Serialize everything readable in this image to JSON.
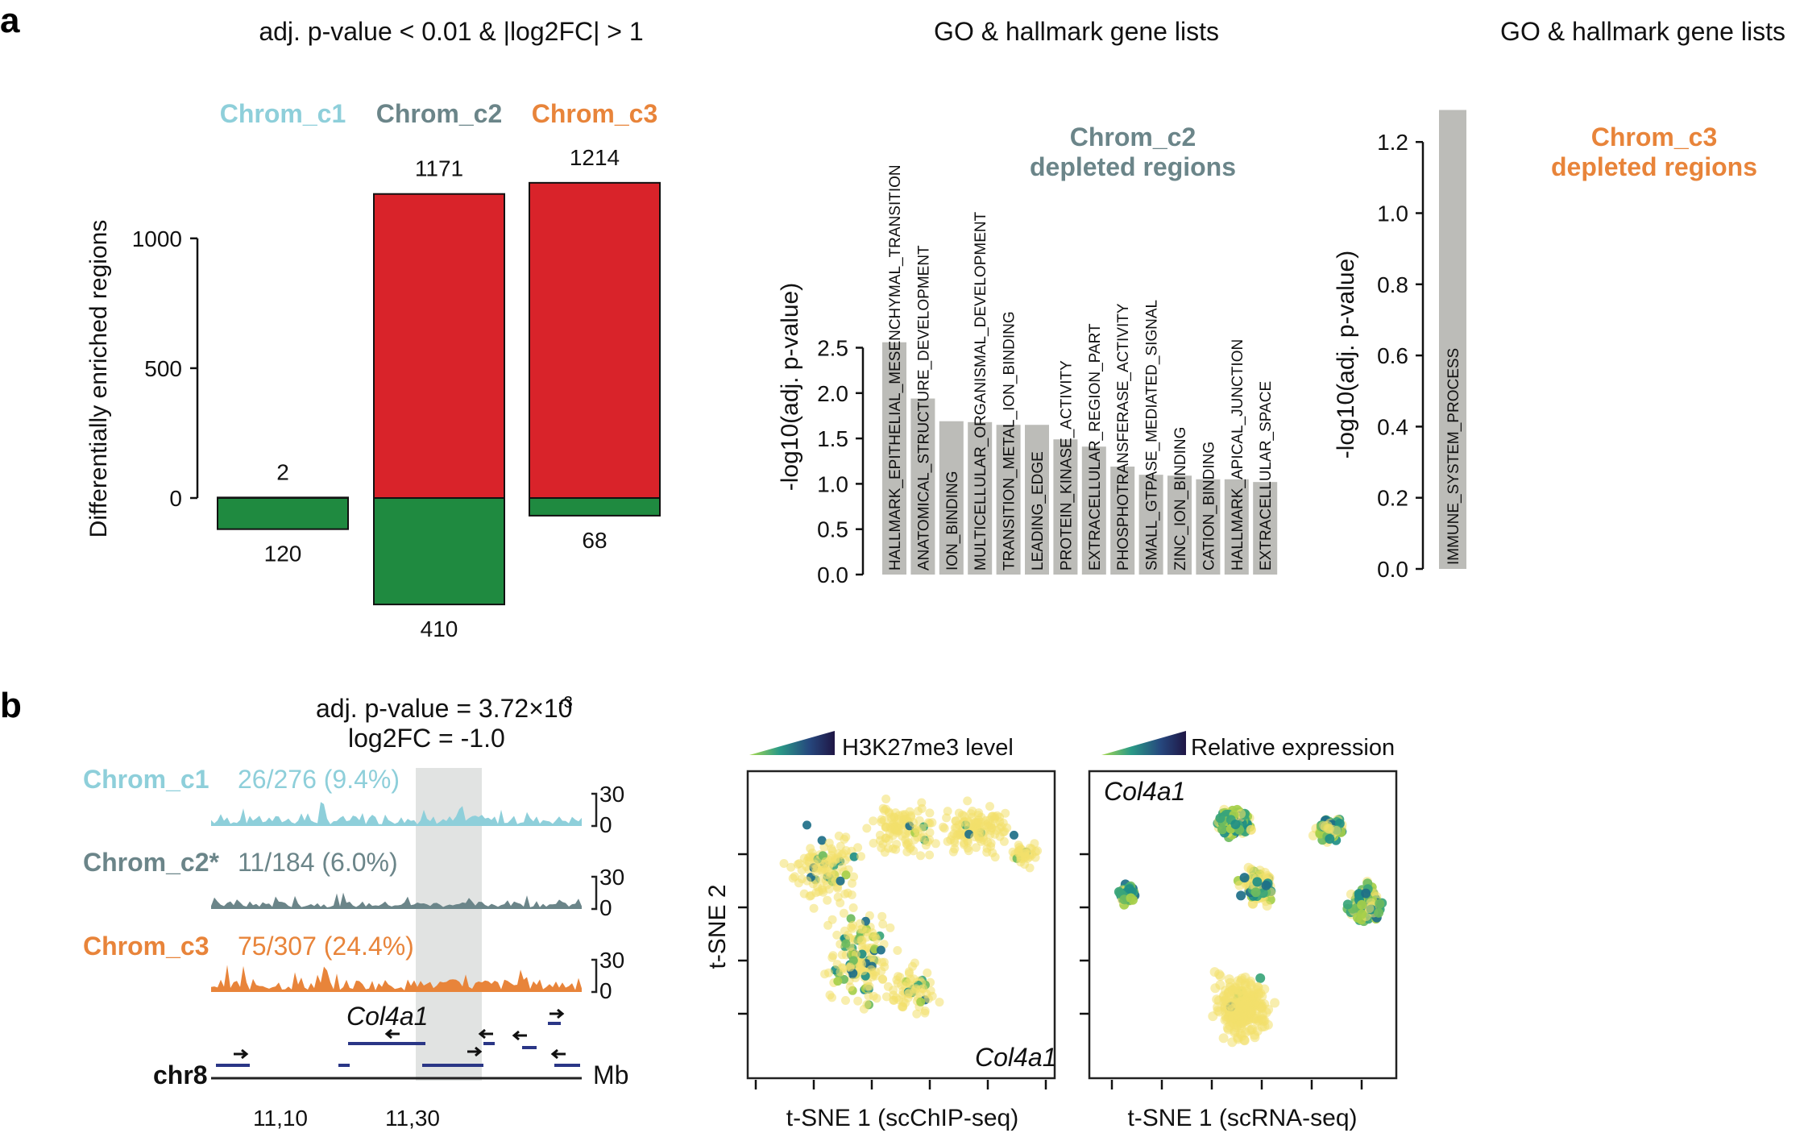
{
  "panel_a_label": "a",
  "panel_b_label": "b",
  "colors": {
    "c1": "#8ecfda",
    "c2": "#6b8589",
    "c3": "#e8843a",
    "up": "#d9232a",
    "down": "#1f8a40",
    "go_bar": "#bcbcb8"
  },
  "chart_data": [
    {
      "type": "bar",
      "title": "adj. p-value < 0.01 & |log2FC| > 1",
      "ylabel": "Differentially enriched regions",
      "categories": [
        "Chrom_c1",
        "Chrom_c2",
        "Chrom_c3"
      ],
      "series": [
        {
          "values": [
            2,
            1171,
            1214
          ]
        },
        {
          "values": [
            -120,
            -410,
            -68
          ]
        }
      ],
      "data_labels_up": [
        "2",
        "1171",
        "1214"
      ],
      "data_labels_down": [
        "120",
        "410",
        "68"
      ],
      "yticks": [
        0,
        500,
        1000
      ],
      "ytick_labels": [
        "0",
        "500",
        "1000"
      ],
      "ylim": [
        -410,
        1214
      ]
    },
    {
      "type": "bar",
      "title": "GO & hallmark gene lists",
      "annotation": [
        "Chrom_c2",
        "depleted regions"
      ],
      "ylabel": "-log10(adj. p-value)",
      "categories": [
        "HALLMARK_EPITHELIAL_MESENCHYMAL_TRANSITION",
        "ANATOMICAL_STRUCTURE_DEVELOPMENT",
        "ION_BINDING",
        "MULTICELLULAR_ORGANISMAL_DEVELOPMENT",
        "TRANSITION_METAL_ION_BINDING",
        "LEADING_EDGE",
        "PROTEIN_KINASE_ACTIVITY",
        "EXTRACELLULAR_REGION_PART",
        "PHOSPHOTRANSFERASE_ACTIVITY",
        "SMALL_GTPASE_MEDIATED_SIGNAL",
        "ZINC_ION_BINDING",
        "CATION_BINDING",
        "HALLMARK_APICAL_JUNCTION",
        "EXTRACELLULAR_SPACE"
      ],
      "values": [
        2.56,
        1.94,
        1.69,
        1.68,
        1.65,
        1.65,
        1.49,
        1.41,
        1.19,
        1.1,
        1.09,
        1.05,
        1.05,
        1.02
      ],
      "yticks": [
        "0.0",
        "0.5",
        "1.0",
        "1.5",
        "2.0",
        "2.5"
      ],
      "ylim": [
        0,
        2.6
      ]
    },
    {
      "type": "bar",
      "title": "GO & hallmark gene lists",
      "annotation": [
        "Chrom_c3",
        "depleted regions"
      ],
      "ylabel": "-log10(adj. p-value)",
      "categories": [
        "IMMUNE_SYSTEM_PROCESS"
      ],
      "values": [
        1.29
      ],
      "yticks": [
        "0.0",
        "0.2",
        "0.4",
        "0.6",
        "0.8",
        "1.0",
        "1.2"
      ],
      "ylim": [
        0,
        1.3
      ]
    },
    {
      "type": "area",
      "stats": [
        "adj. p-value = 3.72×10",
        "-3",
        "log2FC = -1.0"
      ],
      "tracks": [
        {
          "name": "Chrom_c1",
          "frac": "26/276 (9.4%)"
        },
        {
          "name": "Chrom_c2*",
          "frac": "11/184 (6.0%)"
        },
        {
          "name": "Chrom_c3",
          "frac": "75/307 (24.4%)"
        }
      ],
      "scale_max": "30",
      "scale_min": "0",
      "gene": "Col4a1",
      "chrom": "chr8",
      "unit": "Mb",
      "x_ticks": [
        "11,10",
        "11,30"
      ]
    },
    {
      "type": "scatter",
      "legend": "H3K27me3 level",
      "gene": "Col4a1",
      "xlabel": "t-SNE 1 (scChIP-seq)",
      "ylabel": "t-SNE 2"
    },
    {
      "type": "scatter",
      "legend": "Relative expression",
      "gene": "Col4a1",
      "xlabel": "t-SNE 1 (scRNA-seq)"
    }
  ]
}
